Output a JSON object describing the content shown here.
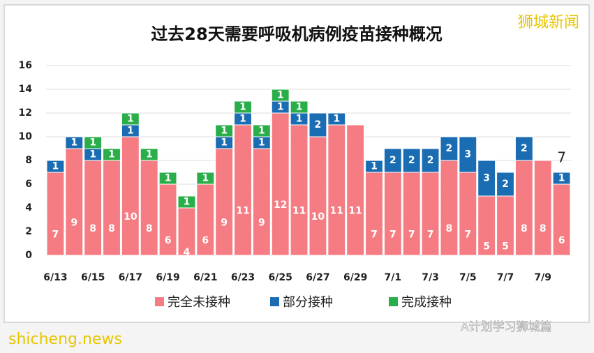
{
  "chart_data": {
    "type": "stacked_bar",
    "title": "过去28天需要呼吸机病例疫苗接种概况",
    "categories": [
      "6/13",
      null,
      "6/15",
      null,
      "6/17",
      null,
      "6/19",
      null,
      "6/21",
      null,
      "6/23",
      null,
      "6/25",
      null,
      "6/27",
      null,
      "6/29",
      null,
      "7/1",
      null,
      "7/3",
      null,
      "7/5",
      null,
      "7/7",
      null,
      "7/9",
      null
    ],
    "series": [
      {
        "name": "完全未接种",
        "color": "#f47c82",
        "values": [
          7,
          9,
          8,
          8,
          10,
          8,
          6,
          4,
          6,
          9,
          11,
          9,
          12,
          11,
          10,
          11,
          11,
          7,
          7,
          7,
          7,
          8,
          7,
          5,
          5,
          8,
          8,
          6
        ]
      },
      {
        "name": "部分接种",
        "color": "#1b6db3",
        "values": [
          1,
          1,
          1,
          0,
          1,
          0,
          0,
          0,
          0,
          1,
          1,
          1,
          1,
          1,
          2,
          1,
          0,
          1,
          2,
          2,
          2,
          2,
          3,
          3,
          2,
          2,
          0,
          1
        ]
      },
      {
        "name": "完成接种",
        "color": "#2aae4a",
        "values": [
          0,
          0,
          1,
          1,
          1,
          1,
          1,
          1,
          1,
          1,
          1,
          1,
          1,
          1,
          0,
          0,
          0,
          0,
          0,
          0,
          0,
          0,
          0,
          0,
          0,
          0,
          0,
          0
        ]
      }
    ],
    "annotation": "7",
    "ylim": [
      0,
      16
    ],
    "yticks": [
      0,
      2,
      4,
      6,
      8,
      10,
      12,
      14,
      16
    ],
    "grid": true,
    "legend": "bottom",
    "watermarks": {
      "top_right": "狮城新闻",
      "bottom_left": "shicheng.news",
      "bottom_right": "A计划学习狮城篇"
    }
  }
}
